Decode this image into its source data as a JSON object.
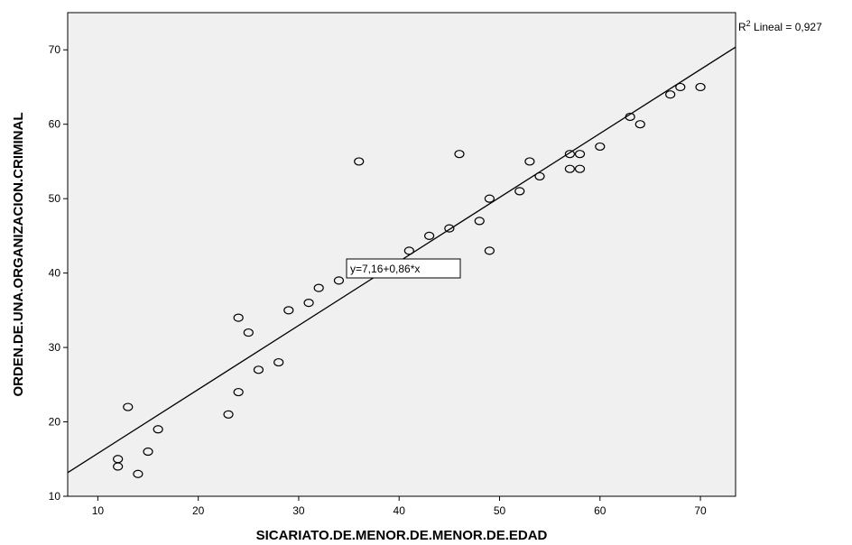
{
  "chart_data": {
    "type": "scatter",
    "xlabel": "SICARIATO.DE.MENOR.DE.MENOR.DE.EDAD",
    "ylabel": "ORDEN.DE.UNA.ORGANIZACION.CRIMINAL",
    "xlim": [
      7,
      73.5
    ],
    "ylim": [
      10,
      75
    ],
    "x_ticks": [
      10,
      20,
      30,
      40,
      50,
      60,
      70
    ],
    "y_ticks": [
      10,
      20,
      30,
      40,
      50,
      60,
      70
    ],
    "x_tick_labels": [
      "10",
      "20",
      "30",
      "40",
      "50",
      "60",
      "70"
    ],
    "y_tick_labels": [
      "10",
      "20",
      "30",
      "40",
      "50",
      "60",
      "70"
    ],
    "grid": false,
    "background_color": "#f0f0f0",
    "marker_color": "#000000",
    "line_color": "#000000",
    "points": [
      {
        "x": 12,
        "y": 15
      },
      {
        "x": 12,
        "y": 14
      },
      {
        "x": 13,
        "y": 22
      },
      {
        "x": 14,
        "y": 13
      },
      {
        "x": 15,
        "y": 16
      },
      {
        "x": 16,
        "y": 19
      },
      {
        "x": 23,
        "y": 21
      },
      {
        "x": 24,
        "y": 34
      },
      {
        "x": 24,
        "y": 24
      },
      {
        "x": 25,
        "y": 32
      },
      {
        "x": 26,
        "y": 27
      },
      {
        "x": 28,
        "y": 28
      },
      {
        "x": 29,
        "y": 35
      },
      {
        "x": 31,
        "y": 36
      },
      {
        "x": 32,
        "y": 38
      },
      {
        "x": 34,
        "y": 39
      },
      {
        "x": 36,
        "y": 55
      },
      {
        "x": 41,
        "y": 43
      },
      {
        "x": 43,
        "y": 45
      },
      {
        "x": 45,
        "y": 46
      },
      {
        "x": 46,
        "y": 56
      },
      {
        "x": 48,
        "y": 47
      },
      {
        "x": 49,
        "y": 50
      },
      {
        "x": 49,
        "y": 43
      },
      {
        "x": 52,
        "y": 51
      },
      {
        "x": 53,
        "y": 55
      },
      {
        "x": 54,
        "y": 53
      },
      {
        "x": 57,
        "y": 56
      },
      {
        "x": 57,
        "y": 54
      },
      {
        "x": 58,
        "y": 56
      },
      {
        "x": 58,
        "y": 54
      },
      {
        "x": 60,
        "y": 57
      },
      {
        "x": 63,
        "y": 61
      },
      {
        "x": 64,
        "y": 60
      },
      {
        "x": 67,
        "y": 64
      },
      {
        "x": 68,
        "y": 65
      },
      {
        "x": 70,
        "y": 65
      }
    ],
    "fit_line": {
      "intercept": 7.16,
      "slope": 0.86,
      "equation_label": "y=7,16+0,86*x"
    },
    "r2_label": "R",
    "r2_superscript": "2",
    "r2_text": " Lineal = 0,927"
  }
}
